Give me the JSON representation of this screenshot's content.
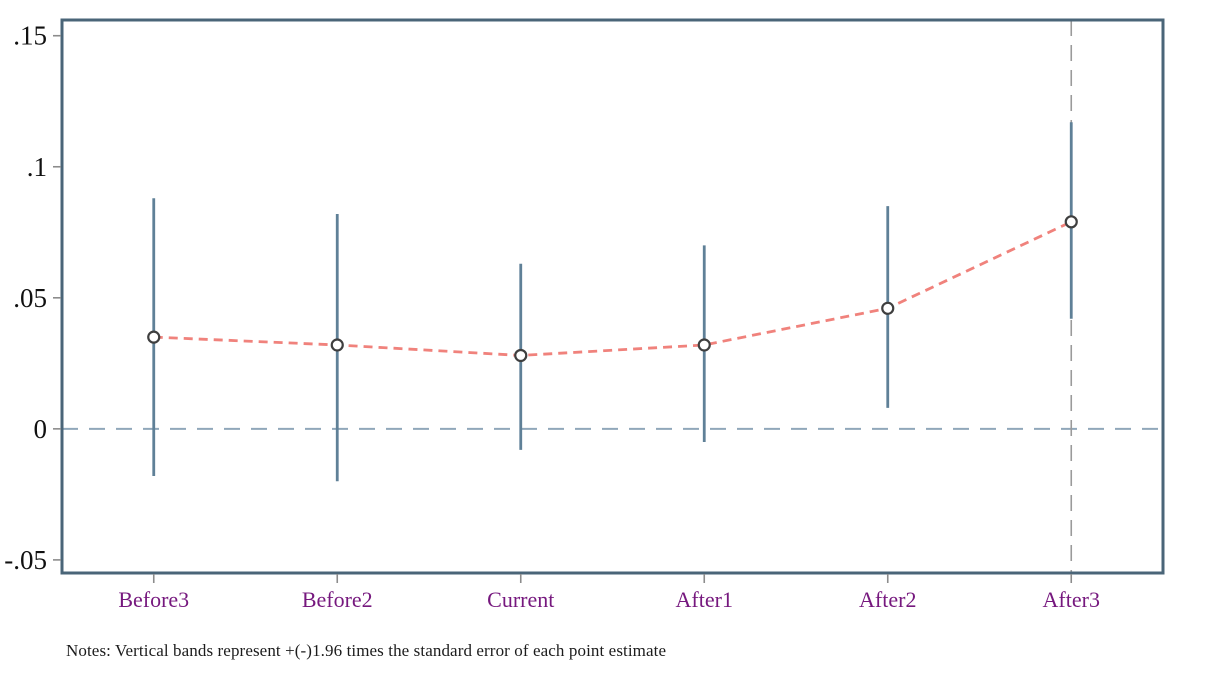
{
  "chart_data": {
    "type": "line",
    "subtype": "event-study-errorbar",
    "title": "",
    "xlabel": "",
    "ylabel": "",
    "categories": [
      "Before3",
      "Before2",
      "Current",
      "After1",
      "After2",
      "After3"
    ],
    "series": [
      {
        "name": "point-estimate",
        "values": [
          0.035,
          0.032,
          0.028,
          0.032,
          0.046,
          0.079
        ],
        "ci_high": [
          0.088,
          0.082,
          0.063,
          0.07,
          0.085,
          0.117
        ],
        "ci_low": [
          -0.018,
          -0.02,
          -0.008,
          -0.005,
          0.008,
          0.042
        ]
      }
    ],
    "yticks": [
      {
        "label": ".15",
        "value": 0.15
      },
      {
        "label": ".1",
        "value": 0.1
      },
      {
        "label": ".05",
        "value": 0.05
      },
      {
        "label": "0",
        "value": 0.0
      },
      {
        "label": "-.05",
        "value": -0.05
      }
    ],
    "ylim": [
      -0.055,
      0.156
    ],
    "grid": false,
    "legend_position": "none",
    "reference_line_y": 0,
    "reference_line_x_category": "After3",
    "notes": "Notes: Vertical bands represent +(-)1.96 times the standard error of each point estimate",
    "colors": {
      "border": "#4a6578",
      "error_bar": "#5f8097",
      "zero_line": "#90a7ba",
      "vertical_ref_line": "#9a9a9a",
      "estimate_line": "#f0827c",
      "marker_stroke": "#3f3f3f",
      "marker_fill": "#ffffff",
      "tick": "#8c8c8c",
      "x_label": "#76187e",
      "y_label": "#101010",
      "notes_text": "#1c1c1c"
    }
  }
}
